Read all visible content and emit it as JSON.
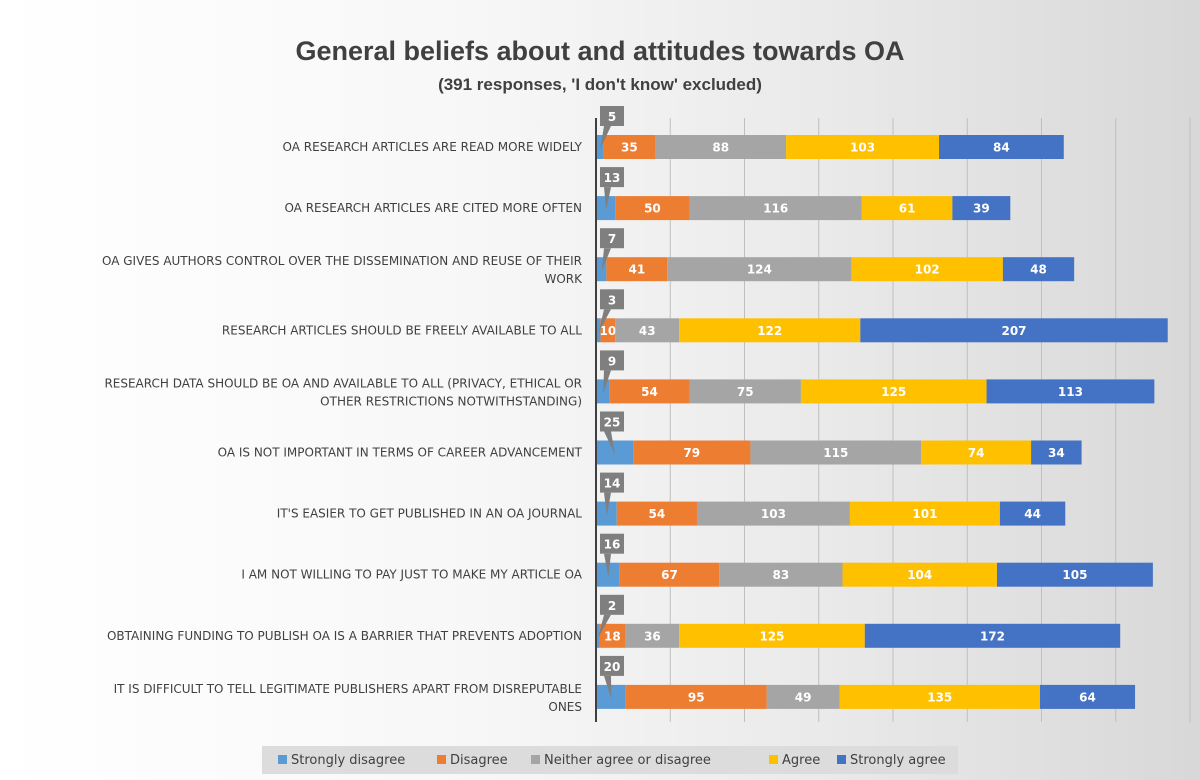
{
  "chart_data": {
    "type": "bar",
    "orientation": "horizontal",
    "stacked": true,
    "title": "General beliefs about and attitudes towards OA",
    "subtitle": "(391 responses, 'I don't know' excluded)",
    "categories": [
      "OA RESEARCH ARTICLES ARE READ MORE WIDELY",
      "OA RESEARCH ARTICLES ARE CITED MORE OFTEN",
      "OA GIVES AUTHORS CONTROL OVER THE DISSEMINATION AND REUSE OF THEIR WORK",
      "RESEARCH ARTICLES SHOULD BE FREELY AVAILABLE TO ALL",
      "RESEARCH DATA SHOULD BE OA AND AVAILABLE TO ALL (PRIVACY, ETHICAL OR OTHER RESTRICTIONS NOTWITHSTANDING)",
      "OA IS NOT IMPORTANT IN TERMS OF CAREER ADVANCEMENT",
      "IT'S EASIER TO GET PUBLISHED IN AN OA JOURNAL",
      "I AM NOT WILLING TO PAY JUST TO MAKE MY ARTICLE OA",
      "OBTAINING FUNDING TO PUBLISH OA IS A BARRIER THAT PREVENTS ADOPTION",
      "IT IS DIFFICULT TO TELL LEGITIMATE PUBLISHERS APART FROM DISREPUTABLE ONES"
    ],
    "category_lines": [
      [
        "OA RESEARCH ARTICLES ARE READ MORE WIDELY"
      ],
      [
        "OA RESEARCH ARTICLES ARE CITED MORE OFTEN"
      ],
      [
        "OA GIVES AUTHORS CONTROL OVER THE DISSEMINATION AND REUSE OF THEIR",
        "WORK"
      ],
      [
        "RESEARCH ARTICLES SHOULD BE FREELY AVAILABLE TO ALL"
      ],
      [
        "RESEARCH DATA SHOULD BE OA AND AVAILABLE TO ALL (PRIVACY, ETHICAL OR",
        "OTHER RESTRICTIONS NOTWITHSTANDING)"
      ],
      [
        "OA IS NOT IMPORTANT IN TERMS OF CAREER ADVANCEMENT"
      ],
      [
        "IT'S EASIER TO GET PUBLISHED IN AN OA JOURNAL"
      ],
      [
        "I AM NOT WILLING TO PAY JUST TO MAKE MY ARTICLE OA"
      ],
      [
        "OBTAINING FUNDING TO PUBLISH OA IS A BARRIER THAT PREVENTS ADOPTION"
      ],
      [
        "IT IS DIFFICULT TO TELL LEGITIMATE PUBLISHERS APART FROM DISREPUTABLE",
        "ONES"
      ]
    ],
    "series": [
      {
        "name": "Strongly disagree",
        "color": "#5b9bd5",
        "values": [
          5,
          13,
          7,
          3,
          9,
          25,
          14,
          16,
          2,
          20
        ]
      },
      {
        "name": "Disagree",
        "color": "#ed7d31",
        "values": [
          35,
          50,
          41,
          10,
          54,
          79,
          54,
          67,
          18,
          95
        ]
      },
      {
        "name": "Neither agree or disagree",
        "color": "#a5a5a5",
        "values": [
          88,
          116,
          124,
          43,
          75,
          115,
          103,
          83,
          36,
          49
        ]
      },
      {
        "name": "Agree",
        "color": "#ffc000",
        "values": [
          103,
          61,
          102,
          122,
          125,
          74,
          101,
          104,
          125,
          135
        ]
      },
      {
        "name": "Strongly agree",
        "color": "#4472c4",
        "values": [
          84,
          39,
          48,
          207,
          113,
          34,
          44,
          105,
          172,
          64
        ]
      }
    ],
    "callout_series": "Strongly disagree",
    "callout_color": "#7f7f7f",
    "xlim": [
      0,
      400
    ],
    "x_gridline_step": 50,
    "grid": true,
    "legend_position": "bottom",
    "legend_background": "#dcdcdc",
    "axis_line_color": "#404040",
    "gridline_color": "#bfbfbf"
  }
}
